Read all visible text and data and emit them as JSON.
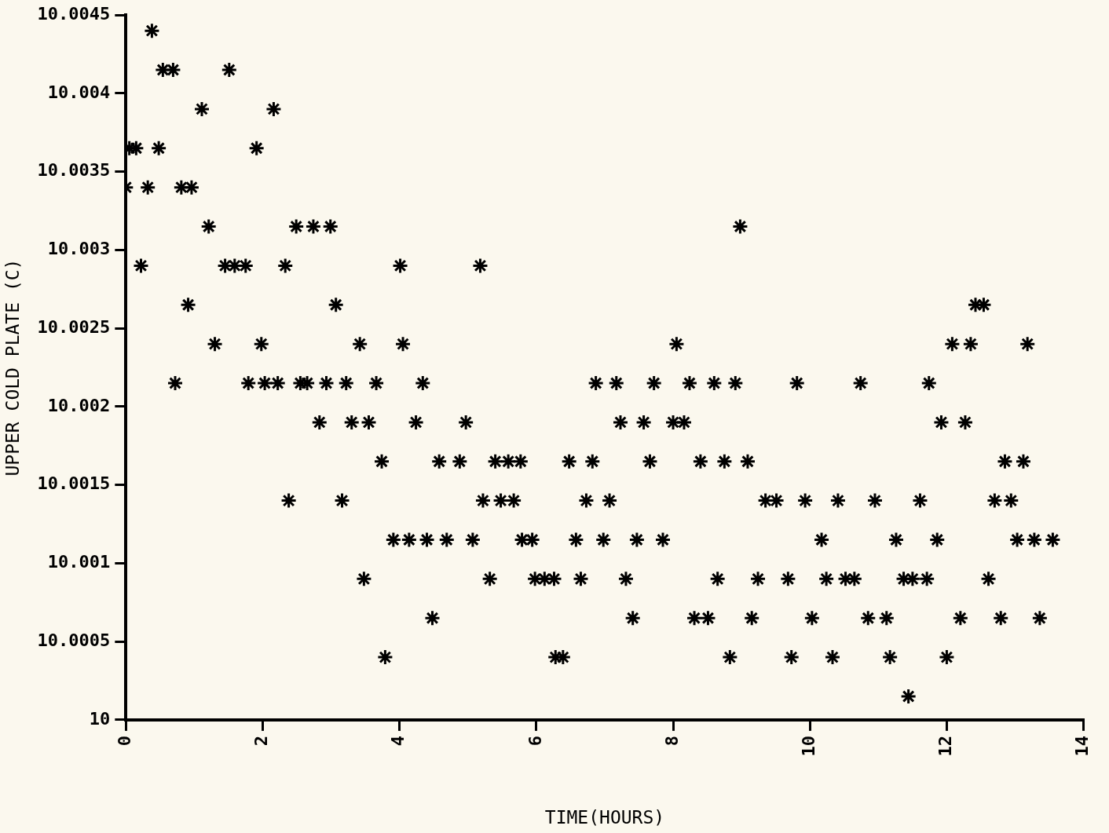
{
  "chart_data": {
    "type": "scatter",
    "xlabel": "TIME(HOURS)",
    "ylabel": "UPPER COLD PLATE (C)",
    "xlim": [
      0,
      14
    ],
    "xticks": [
      0,
      2,
      4,
      6,
      8,
      10,
      12,
      14
    ],
    "ylim": [
      10,
      10.0045
    ],
    "yticks": [
      10,
      10.0005,
      10.001,
      10.0015,
      10.002,
      10.0025,
      10.003,
      10.0035,
      10.004,
      10.0045
    ],
    "marker": "cross",
    "series": [
      {
        "color": "#000000",
        "x": [
          0.38,
          0.54,
          0.69,
          1.51,
          1.11,
          2.16,
          0.05,
          0.15,
          0.48,
          1.91,
          0.0,
          0.32,
          0.81,
          0.96,
          1.21,
          2.49,
          2.74,
          2.99,
          8.98,
          0.22,
          1.45,
          1.59,
          1.75,
          2.33,
          4.01,
          5.18,
          0.91,
          3.07,
          12.42,
          12.54,
          1.3,
          1.98,
          3.42,
          4.05,
          8.05,
          12.08,
          12.35,
          13.18,
          0.72,
          1.79,
          2.03,
          2.22,
          2.55,
          2.65,
          2.93,
          3.22,
          3.66,
          4.34,
          6.87,
          7.17,
          7.72,
          8.24,
          8.6,
          8.91,
          9.81,
          10.74,
          11.74,
          2.83,
          3.3,
          3.55,
          4.24,
          4.97,
          7.23,
          7.57,
          8.0,
          8.16,
          11.92,
          12.27,
          3.74,
          4.58,
          4.88,
          5.4,
          5.59,
          5.77,
          6.48,
          6.82,
          7.66,
          8.4,
          8.75,
          9.09,
          12.85,
          13.12,
          2.38,
          3.16,
          5.22,
          5.48,
          5.67,
          6.73,
          7.07,
          9.35,
          9.51,
          9.93,
          10.41,
          10.95,
          11.61,
          12.7,
          12.94,
          3.91,
          4.14,
          4.4,
          4.69,
          5.07,
          5.79,
          5.94,
          6.58,
          6.98,
          7.47,
          7.85,
          10.17,
          11.26,
          11.86,
          13.03,
          13.28,
          13.55,
          3.48,
          5.32,
          5.98,
          6.12,
          6.26,
          6.65,
          7.31,
          8.65,
          9.24,
          9.68,
          10.24,
          10.52,
          10.65,
          11.37,
          11.5,
          11.71,
          12.61,
          4.48,
          7.41,
          8.31,
          8.51,
          9.15,
          10.03,
          10.85,
          11.12,
          12.2,
          12.79,
          13.36,
          3.79,
          6.28,
          6.39,
          8.83,
          9.73,
          10.33,
          11.17,
          12.0,
          11.44
        ],
        "values": [
          10.0044,
          10.00415,
          10.00415,
          10.00415,
          10.0039,
          10.0039,
          10.00365,
          10.00365,
          10.00365,
          10.00365,
          10.0034,
          10.0034,
          10.0034,
          10.0034,
          10.00315,
          10.00315,
          10.00315,
          10.00315,
          10.00315,
          10.0029,
          10.0029,
          10.0029,
          10.0029,
          10.0029,
          10.0029,
          10.0029,
          10.00265,
          10.00265,
          10.00265,
          10.00265,
          10.0024,
          10.0024,
          10.0024,
          10.0024,
          10.0024,
          10.0024,
          10.0024,
          10.0024,
          10.00215,
          10.00215,
          10.00215,
          10.00215,
          10.00215,
          10.00215,
          10.00215,
          10.00215,
          10.00215,
          10.00215,
          10.00215,
          10.00215,
          10.00215,
          10.00215,
          10.00215,
          10.00215,
          10.00215,
          10.00215,
          10.00215,
          10.0019,
          10.0019,
          10.0019,
          10.0019,
          10.0019,
          10.0019,
          10.0019,
          10.0019,
          10.0019,
          10.0019,
          10.0019,
          10.00165,
          10.00165,
          10.00165,
          10.00165,
          10.00165,
          10.00165,
          10.00165,
          10.00165,
          10.00165,
          10.00165,
          10.00165,
          10.00165,
          10.00165,
          10.00165,
          10.0014,
          10.0014,
          10.0014,
          10.0014,
          10.0014,
          10.0014,
          10.0014,
          10.0014,
          10.0014,
          10.0014,
          10.0014,
          10.0014,
          10.0014,
          10.0014,
          10.0014,
          10.00115,
          10.00115,
          10.00115,
          10.00115,
          10.00115,
          10.00115,
          10.00115,
          10.00115,
          10.00115,
          10.00115,
          10.00115,
          10.00115,
          10.00115,
          10.00115,
          10.00115,
          10.00115,
          10.00115,
          10.0009,
          10.0009,
          10.0009,
          10.0009,
          10.0009,
          10.0009,
          10.0009,
          10.0009,
          10.0009,
          10.0009,
          10.0009,
          10.0009,
          10.0009,
          10.0009,
          10.0009,
          10.0009,
          10.0009,
          10.00065,
          10.00065,
          10.00065,
          10.00065,
          10.00065,
          10.00065,
          10.00065,
          10.00065,
          10.00065,
          10.00065,
          10.00065,
          10.0004,
          10.0004,
          10.0004,
          10.0004,
          10.0004,
          10.0004,
          10.0004,
          10.0004,
          10.00015
        ]
      }
    ]
  }
}
